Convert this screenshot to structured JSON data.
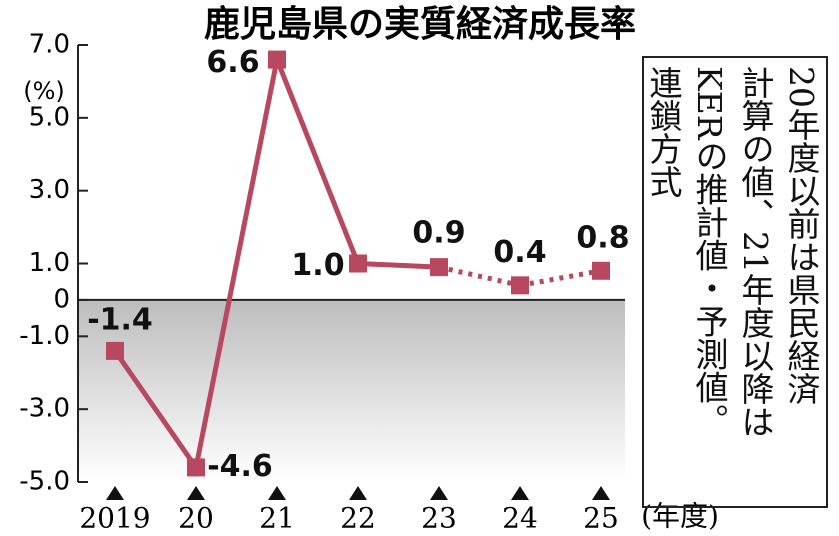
{
  "chart_data": {
    "type": "line",
    "title": "鹿児島県の実質経済成長率",
    "y_axis_label": "(%)",
    "x_axis_label": "(年度)",
    "categories": [
      "2019",
      "20",
      "21",
      "22",
      "23",
      "24",
      "25"
    ],
    "values": [
      -1.4,
      -4.6,
      6.6,
      1.0,
      0.9,
      0.4,
      0.8
    ],
    "value_labels": [
      "-1.4",
      "-4.6",
      "6.6",
      "1.0",
      "0.9",
      "0.4",
      "0.8"
    ],
    "color": "#b8485f",
    "segment_styles": [
      "solid",
      "solid",
      "solid",
      "solid",
      "dotted",
      "dotted"
    ],
    "ylim": [
      -5,
      7
    ],
    "yticks": [
      {
        "value": 7,
        "label": "7.0"
      },
      {
        "value": 5,
        "label": "5.0"
      },
      {
        "value": 3,
        "label": "3.0"
      },
      {
        "value": 1,
        "label": "1.0"
      },
      0,
      {
        "value": -1,
        "label": "-1.0"
      },
      {
        "value": -3,
        "label": "-3.0"
      },
      {
        "value": -5,
        "label": "-5.0"
      }
    ],
    "forecast_label": "予測",
    "note": [
      "20年度以前は県民経済",
      "計算の値、21年度以降は",
      "KERの推計値・予測値。",
      "連鎖方式"
    ]
  }
}
